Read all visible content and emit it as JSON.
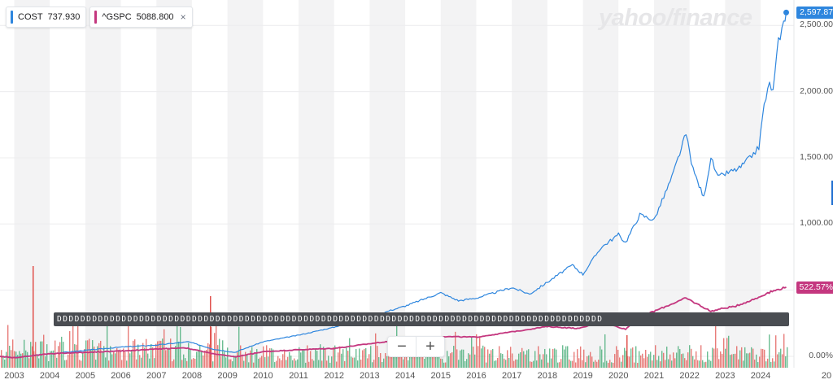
{
  "legend": {
    "cost": {
      "symbol": "COST",
      "price": "737.930",
      "color": "#2e86de"
    },
    "gspc": {
      "symbol": "^GSPC",
      "price": "5088.800",
      "color": "#c4377f",
      "remove": "×"
    }
  },
  "watermark": "yahoo/finance",
  "price_tags": {
    "cost": "2,597.87",
    "gspc": "522.57%"
  },
  "events_band": "DDDDDDDDDDDDDDDDDDDDDDDDDDDDDDDDDDDDDDDDDDDDDDDDDDDDDDDDDDDDDDDDDDDDDDDDDDDDDDDDDDDDDDDDDDDDD",
  "zoom": {
    "minus": "−",
    "plus": "+"
  },
  "chart_data": {
    "type": "line",
    "y_axis_ticks": [
      "2,500.00",
      "2,000.00",
      "1,500.00",
      "1,000.00",
      "0.00%"
    ],
    "x_axis_ticks": [
      "2003",
      "2004",
      "2005",
      "2006",
      "2007",
      "2008",
      "2009",
      "2010",
      "2011",
      "2012",
      "2013",
      "2014",
      "2015",
      "2016",
      "2017",
      "2018",
      "2019",
      "2020",
      "2021",
      "2022",
      "2023",
      "2024",
      "20"
    ],
    "x_range": [
      2002.6,
      2024.8
    ],
    "y_range_percent": [
      0,
      2600
    ],
    "series": [
      {
        "name": "COST",
        "color": "#2e86de",
        "points": [
          [
            2002.6,
            0
          ],
          [
            2003.0,
            -10
          ],
          [
            2004.0,
            20
          ],
          [
            2005.0,
            45
          ],
          [
            2006.0,
            70
          ],
          [
            2007.0,
            85
          ],
          [
            2007.9,
            110
          ],
          [
            2008.6,
            55
          ],
          [
            2009.2,
            30
          ],
          [
            2010.0,
            110
          ],
          [
            2011.0,
            160
          ],
          [
            2012.0,
            220
          ],
          [
            2013.0,
            300
          ],
          [
            2014.0,
            380
          ],
          [
            2015.0,
            480
          ],
          [
            2015.5,
            420
          ],
          [
            2016.0,
            440
          ],
          [
            2016.5,
            480
          ],
          [
            2017.0,
            520
          ],
          [
            2017.5,
            470
          ],
          [
            2018.0,
            560
          ],
          [
            2018.7,
            690
          ],
          [
            2019.0,
            620
          ],
          [
            2019.5,
            820
          ],
          [
            2020.0,
            920
          ],
          [
            2020.2,
            860
          ],
          [
            2020.6,
            1070
          ],
          [
            2021.0,
            1030
          ],
          [
            2021.5,
            1350
          ],
          [
            2021.9,
            1680
          ],
          [
            2022.1,
            1410
          ],
          [
            2022.4,
            1200
          ],
          [
            2022.6,
            1500
          ],
          [
            2022.8,
            1350
          ],
          [
            2023.0,
            1380
          ],
          [
            2023.4,
            1420
          ],
          [
            2023.7,
            1500
          ],
          [
            2023.95,
            1580
          ],
          [
            2024.1,
            1900
          ],
          [
            2024.25,
            2060
          ],
          [
            2024.35,
            2000
          ],
          [
            2024.5,
            2380
          ],
          [
            2024.65,
            2520
          ],
          [
            2024.72,
            2597.87
          ]
        ]
      },
      {
        "name": "^GSPC",
        "color": "#c4377f",
        "points": [
          [
            2002.6,
            0
          ],
          [
            2003.0,
            -10
          ],
          [
            2004.0,
            20
          ],
          [
            2005.0,
            30
          ],
          [
            2006.0,
            40
          ],
          [
            2007.0,
            55
          ],
          [
            2007.8,
            65
          ],
          [
            2008.5,
            25
          ],
          [
            2009.2,
            -5
          ],
          [
            2010.0,
            35
          ],
          [
            2011.0,
            50
          ],
          [
            2012.0,
            60
          ],
          [
            2013.0,
            95
          ],
          [
            2014.0,
            130
          ],
          [
            2015.0,
            150
          ],
          [
            2016.0,
            145
          ],
          [
            2017.0,
            185
          ],
          [
            2018.0,
            225
          ],
          [
            2018.9,
            210
          ],
          [
            2019.5,
            260
          ],
          [
            2020.2,
            205
          ],
          [
            2020.6,
            300
          ],
          [
            2021.0,
            340
          ],
          [
            2021.9,
            440
          ],
          [
            2022.6,
            340
          ],
          [
            2022.9,
            360
          ],
          [
            2023.3,
            380
          ],
          [
            2023.9,
            440
          ],
          [
            2024.2,
            480
          ],
          [
            2024.5,
            505
          ],
          [
            2024.72,
            522.57
          ]
        ]
      }
    ],
    "volume_colors": {
      "up": "#3aa76d",
      "down": "#e0524d"
    }
  }
}
